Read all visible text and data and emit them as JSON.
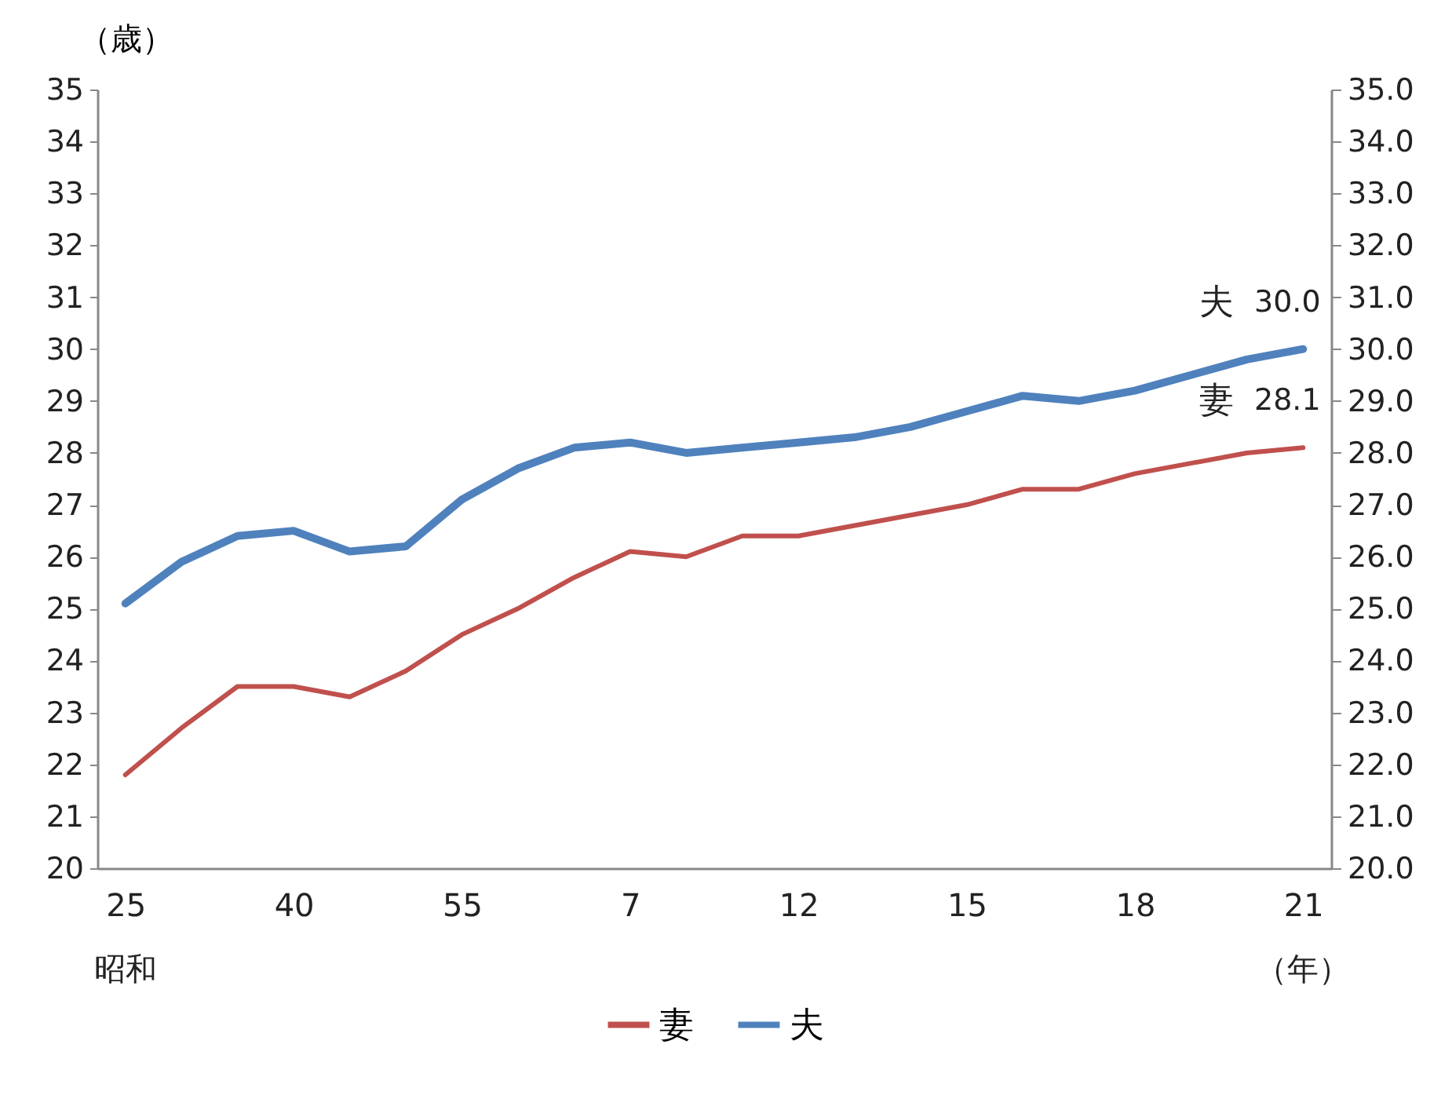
{
  "chart_data": {
    "type": "line",
    "categories": [
      "25",
      null,
      null,
      "40",
      null,
      null,
      "55",
      null,
      null,
      "7",
      null,
      null,
      "12",
      null,
      null,
      "15",
      null,
      null,
      "18",
      null,
      null,
      "21"
    ],
    "series": [
      {
        "name": "妻",
        "color": "#c0504d",
        "values": [
          21.8,
          22.7,
          23.5,
          23.5,
          23.3,
          23.8,
          24.5,
          25.0,
          25.6,
          26.1,
          26.0,
          26.4,
          26.4,
          26.6,
          26.8,
          27.0,
          27.3,
          27.3,
          27.6,
          27.8,
          28.0,
          28.1
        ],
        "value_labels": [
          null,
          null,
          null,
          null,
          null,
          null,
          null,
          null,
          null,
          null,
          null,
          null,
          null,
          null,
          null,
          null,
          null,
          null,
          null,
          null,
          null,
          "28.1"
        ]
      },
      {
        "name": "夫",
        "color": "#4f81bd",
        "values": [
          25.1,
          25.9,
          26.4,
          26.5,
          26.1,
          26.2,
          27.1,
          27.7,
          28.1,
          28.2,
          28.0,
          28.1,
          28.2,
          28.3,
          28.5,
          28.8,
          29.1,
          29.0,
          29.2,
          29.5,
          29.8,
          30.0
        ],
        "value_labels": [
          null,
          null,
          null,
          null,
          null,
          null,
          null,
          null,
          null,
          null,
          null,
          null,
          null,
          null,
          null,
          null,
          null,
          null,
          null,
          null,
          null,
          "30.0"
        ]
      }
    ],
    "ylabel": "（歳）",
    "xlabel": "（年）",
    "annotations": [
      "昭和"
    ],
    "ylim": [
      20,
      35
    ],
    "yticks": [
      20,
      21,
      22,
      23,
      24,
      25,
      26,
      27,
      28,
      29,
      30,
      31,
      32,
      33,
      34,
      35
    ],
    "y2lim": [
      20,
      35
    ],
    "y2ticks": [
      {
        "value": 20,
        "label": "20.0"
      },
      {
        "value": 21,
        "label": "21.0"
      },
      {
        "value": 22,
        "label": "22.0"
      },
      {
        "value": 23,
        "label": "23.0"
      },
      {
        "value": 24,
        "label": "24.0"
      },
      {
        "value": 25,
        "label": "25.0"
      },
      {
        "value": 26,
        "label": "26.0"
      },
      {
        "value": 27,
        "label": "27.0"
      },
      {
        "value": 28,
        "label": "28.0"
      },
      {
        "value": 29,
        "label": "29.0"
      },
      {
        "value": 30,
        "label": "30.0"
      },
      {
        "value": 31,
        "label": "31.0"
      },
      {
        "value": 32,
        "label": "32.0"
      },
      {
        "value": 33,
        "label": "33.0"
      },
      {
        "value": 34,
        "label": "34.0"
      },
      {
        "value": 35,
        "label": "35.0"
      }
    ],
    "grid": false,
    "legend": "bottom",
    "marker": "none",
    "line_style": "solid"
  }
}
